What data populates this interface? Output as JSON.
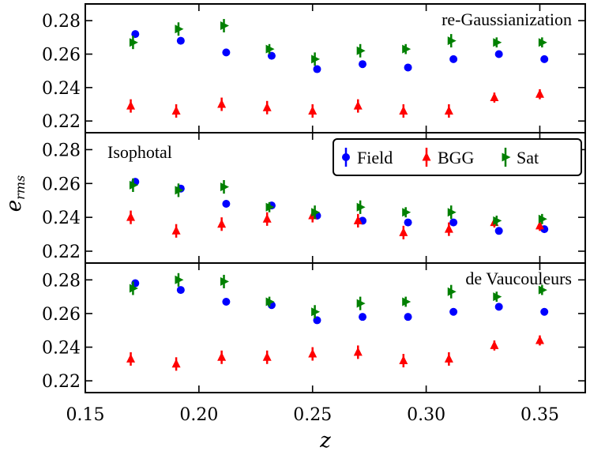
{
  "chart_data": {
    "type": "scatter",
    "xlabel": "z",
    "ylabel_main": "e",
    "ylabel_sub": "rms",
    "xlim": [
      0.15,
      0.37
    ],
    "xticks": [
      0.15,
      0.2,
      0.25,
      0.3,
      0.35
    ],
    "xtick_labels": [
      "0.15",
      "0.20",
      "0.25",
      "0.30",
      "0.35"
    ],
    "ylim": [
      0.213,
      0.29
    ],
    "yticks": [
      0.22,
      0.24,
      0.26,
      0.28
    ],
    "ytick_labels": [
      "0.22",
      "0.24",
      "0.26",
      "0.28"
    ],
    "legend": {
      "placement": "inside middle panel, top-right",
      "entries": [
        {
          "name": "Field",
          "color": "#0000ff",
          "marker": "circle"
        },
        {
          "name": "BGG",
          "color": "#ff0000",
          "marker": "triangle"
        },
        {
          "name": "Sat",
          "color": "#008000",
          "marker": "right-triangle"
        }
      ]
    },
    "panels": [
      {
        "title": "re-Gaussianization",
        "title_placement": "top-right",
        "series": [
          {
            "name": "Field",
            "x": [
              0.172,
              0.192,
              0.212,
              0.232,
              0.252,
              0.272,
              0.292,
              0.312,
              0.332,
              0.352
            ],
            "y": [
              0.272,
              0.268,
              0.261,
              0.259,
              0.251,
              0.254,
              0.252,
              0.257,
              0.26,
              0.257
            ],
            "yerr": [
              0.0015,
              0.0015,
              0.0015,
              0.0015,
              0.0015,
              0.0015,
              0.0015,
              0.0015,
              0.0015,
              0.0015
            ]
          },
          {
            "name": "BGG",
            "x": [
              0.17,
              0.19,
              0.21,
              0.23,
              0.25,
              0.27,
              0.29,
              0.31,
              0.33,
              0.35
            ],
            "y": [
              0.229,
              0.226,
              0.23,
              0.228,
              0.226,
              0.229,
              0.226,
              0.226,
              0.234,
              0.236
            ],
            "yerr": [
              0.004,
              0.004,
              0.004,
              0.004,
              0.004,
              0.004,
              0.004,
              0.004,
              0.003,
              0.003
            ]
          },
          {
            "name": "Sat",
            "x": [
              0.171,
              0.191,
              0.211,
              0.231,
              0.251,
              0.271,
              0.291,
              0.311,
              0.331,
              0.351
            ],
            "y": [
              0.267,
              0.275,
              0.277,
              0.263,
              0.257,
              0.262,
              0.263,
              0.268,
              0.267,
              0.267
            ],
            "yerr": [
              0.004,
              0.004,
              0.004,
              0.003,
              0.004,
              0.004,
              0.003,
              0.004,
              0.003,
              0.003
            ]
          }
        ]
      },
      {
        "title": "Isophotal",
        "title_placement": "top-left",
        "series": [
          {
            "name": "Field",
            "x": [
              0.172,
              0.192,
              0.212,
              0.232,
              0.252,
              0.272,
              0.292,
              0.312,
              0.332,
              0.352
            ],
            "y": [
              0.261,
              0.257,
              0.248,
              0.247,
              0.241,
              0.238,
              0.237,
              0.237,
              0.232,
              0.233
            ],
            "yerr": [
              0.0015,
              0.0015,
              0.0015,
              0.0015,
              0.0015,
              0.0015,
              0.0015,
              0.0015,
              0.0015,
              0.0015
            ]
          },
          {
            "name": "BGG",
            "x": [
              0.17,
              0.19,
              0.21,
              0.23,
              0.25,
              0.27,
              0.29,
              0.31,
              0.33,
              0.35
            ],
            "y": [
              0.24,
              0.232,
              0.236,
              0.239,
              0.241,
              0.238,
              0.231,
              0.233,
              0.237,
              0.235
            ],
            "yerr": [
              0.004,
              0.004,
              0.004,
              0.004,
              0.004,
              0.004,
              0.004,
              0.004,
              0.003,
              0.003
            ]
          },
          {
            "name": "Sat",
            "x": [
              0.171,
              0.191,
              0.211,
              0.231,
              0.251,
              0.271,
              0.291,
              0.311,
              0.331,
              0.351
            ],
            "y": [
              0.259,
              0.256,
              0.258,
              0.246,
              0.243,
              0.246,
              0.243,
              0.243,
              0.238,
              0.239
            ],
            "yerr": [
              0.004,
              0.004,
              0.004,
              0.003,
              0.004,
              0.004,
              0.003,
              0.004,
              0.003,
              0.003
            ]
          }
        ]
      },
      {
        "title": "de Vaucouleurs",
        "title_placement": "top-right",
        "series": [
          {
            "name": "Field",
            "x": [
              0.172,
              0.192,
              0.212,
              0.232,
              0.252,
              0.272,
              0.292,
              0.312,
              0.332,
              0.352
            ],
            "y": [
              0.278,
              0.274,
              0.267,
              0.265,
              0.256,
              0.258,
              0.258,
              0.261,
              0.264,
              0.261
            ],
            "yerr": [
              0.0015,
              0.0015,
              0.0015,
              0.0015,
              0.0015,
              0.0015,
              0.0015,
              0.0015,
              0.0015,
              0.0015
            ]
          },
          {
            "name": "BGG",
            "x": [
              0.17,
              0.19,
              0.21,
              0.23,
              0.25,
              0.27,
              0.29,
              0.31,
              0.33,
              0.35
            ],
            "y": [
              0.233,
              0.23,
              0.234,
              0.234,
              0.236,
              0.237,
              0.232,
              0.233,
              0.241,
              0.244
            ],
            "yerr": [
              0.004,
              0.004,
              0.004,
              0.004,
              0.004,
              0.004,
              0.004,
              0.004,
              0.003,
              0.003
            ]
          },
          {
            "name": "Sat",
            "x": [
              0.171,
              0.191,
              0.211,
              0.231,
              0.251,
              0.271,
              0.291,
              0.311,
              0.331,
              0.351
            ],
            "y": [
              0.275,
              0.28,
              0.279,
              0.267,
              0.261,
              0.266,
              0.267,
              0.273,
              0.27,
              0.274
            ],
            "yerr": [
              0.004,
              0.004,
              0.004,
              0.003,
              0.004,
              0.004,
              0.003,
              0.004,
              0.003,
              0.003
            ]
          }
        ]
      }
    ]
  }
}
